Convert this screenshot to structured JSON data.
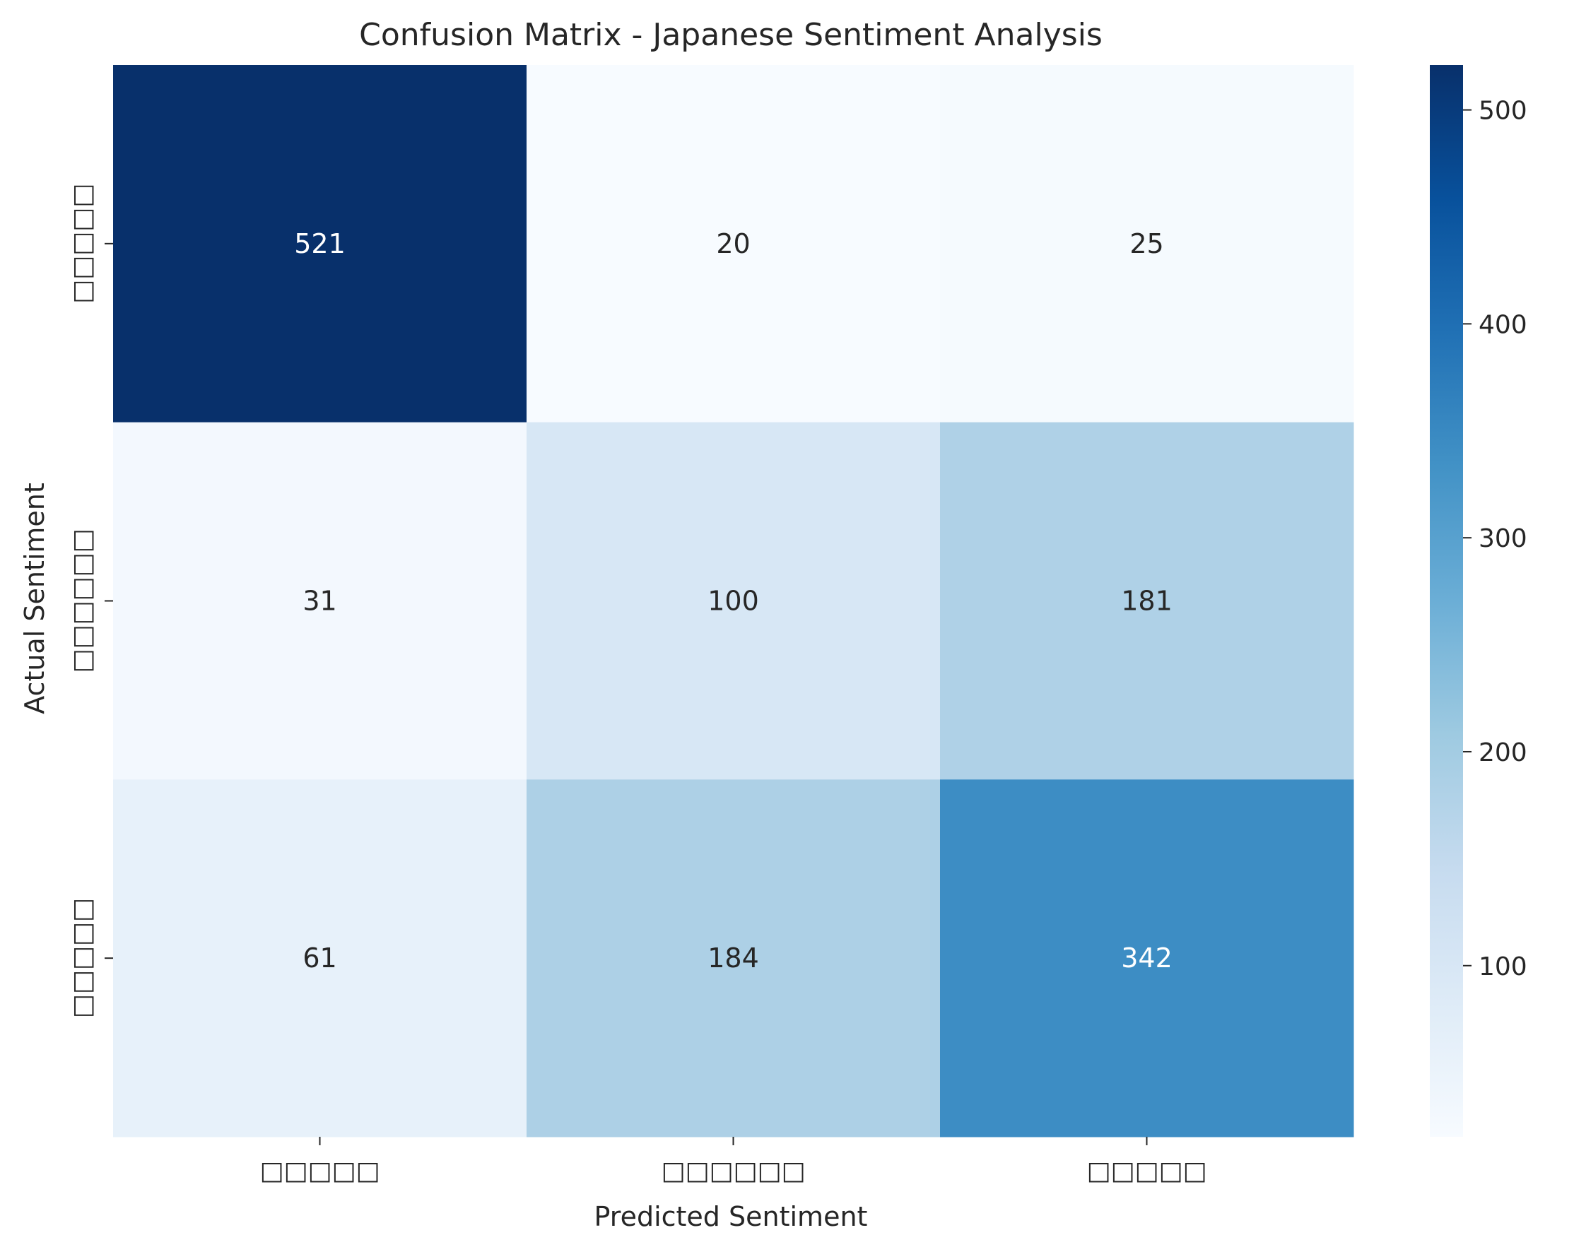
{
  "chart_data": {
    "type": "heatmap",
    "title": "Confusion Matrix - Japanese Sentiment Analysis",
    "xlabel": "Predicted Sentiment",
    "ylabel": "Actual Sentiment",
    "x_tick_labels": [
      "□□□□□",
      "□□□□□□",
      "□□□□□"
    ],
    "y_tick_labels": [
      "□□□□□",
      "□□□□□□",
      "□□□□□"
    ],
    "matrix": [
      [
        521,
        20,
        25
      ],
      [
        31,
        100,
        181
      ],
      [
        61,
        184,
        342
      ]
    ],
    "colormap": "Blues",
    "colorbar": {
      "range": [
        20,
        521
      ],
      "ticks": [
        100,
        200,
        300,
        400,
        500
      ],
      "tick_labels": [
        "100",
        "200",
        "300",
        "400",
        "500"
      ]
    },
    "colors": {
      "low": "#f7fbff",
      "high": "#08306b",
      "text_dark": "#262626",
      "text_light": "#ffffff"
    }
  }
}
